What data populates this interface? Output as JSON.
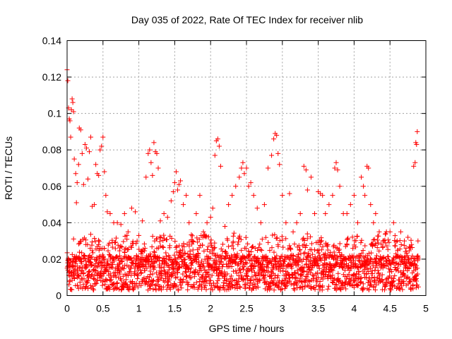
{
  "chart_data": {
    "type": "scatter",
    "title": "Day 035 of 2022, Rate Of TEC Index for receiver nlib",
    "xlabel": "GPS time / hours",
    "ylabel": "ROTI / TECUs",
    "xlim": [
      0,
      5
    ],
    "ylim": [
      0,
      0.14
    ],
    "xticks": [
      0,
      0.5,
      1,
      1.5,
      2,
      2.5,
      3,
      3.5,
      4,
      4.5,
      5
    ],
    "xtick_labels": [
      "0",
      "0.5",
      "1",
      "1.5",
      "2",
      "2.5",
      "3",
      "3.5",
      "4",
      "4.5",
      "5"
    ],
    "yticks": [
      0,
      0.02,
      0.04,
      0.06,
      0.08,
      0.1,
      0.12,
      0.14
    ],
    "ytick_labels": [
      "0",
      "0.02",
      "0.04",
      "0.06",
      "0.08",
      "0.1",
      "0.12",
      "0.14"
    ],
    "grid": true,
    "marker": "+",
    "color": "#ff0000",
    "series": [
      {
        "name": "ROTI",
        "points": [
          [
            0.0,
            0.124
          ],
          [
            0.01,
            0.118
          ],
          [
            0.02,
            0.103
          ],
          [
            0.03,
            0.097
          ],
          [
            0.04,
            0.096
          ],
          [
            0.05,
            0.087
          ],
          [
            0.06,
            0.102
          ],
          [
            0.07,
            0.108
          ],
          [
            0.08,
            0.106
          ],
          [
            0.09,
            0.101
          ],
          [
            0.1,
            0.075
          ],
          [
            0.12,
            0.067
          ],
          [
            0.13,
            0.051
          ],
          [
            0.14,
            0.062
          ],
          [
            0.16,
            0.072
          ],
          [
            0.17,
            0.092
          ],
          [
            0.19,
            0.091
          ],
          [
            0.21,
            0.078
          ],
          [
            0.23,
            0.061
          ],
          [
            0.25,
            0.083
          ],
          [
            0.27,
            0.081
          ],
          [
            0.29,
            0.064
          ],
          [
            0.31,
            0.079
          ],
          [
            0.33,
            0.087
          ],
          [
            0.35,
            0.049
          ],
          [
            0.38,
            0.05
          ],
          [
            0.4,
            0.072
          ],
          [
            0.42,
            0.067
          ],
          [
            0.44,
            0.066
          ],
          [
            0.46,
            0.08
          ],
          [
            0.48,
            0.082
          ],
          [
            0.5,
            0.087
          ],
          [
            0.52,
            0.068
          ],
          [
            0.54,
            0.055
          ],
          [
            0.56,
            0.046
          ],
          [
            0.6,
            0.045
          ],
          [
            0.65,
            0.04
          ],
          [
            0.7,
            0.04
          ],
          [
            0.75,
            0.039
          ],
          [
            0.8,
            0.045
          ],
          [
            0.85,
            0.035
          ],
          [
            0.9,
            0.048
          ],
          [
            0.95,
            0.046
          ],
          [
            1.0,
            0.033
          ],
          [
            1.05,
            0.041
          ],
          [
            1.1,
            0.065
          ],
          [
            1.13,
            0.078
          ],
          [
            1.15,
            0.08
          ],
          [
            1.17,
            0.073
          ],
          [
            1.19,
            0.066
          ],
          [
            1.21,
            0.084
          ],
          [
            1.23,
            0.079
          ],
          [
            1.25,
            0.078
          ],
          [
            1.27,
            0.07
          ],
          [
            1.3,
            0.041
          ],
          [
            1.35,
            0.045
          ],
          [
            1.4,
            0.043
          ],
          [
            1.45,
            0.052
          ],
          [
            1.48,
            0.057
          ],
          [
            1.5,
            0.062
          ],
          [
            1.52,
            0.068
          ],
          [
            1.54,
            0.058
          ],
          [
            1.56,
            0.061
          ],
          [
            1.58,
            0.063
          ],
          [
            1.62,
            0.05
          ],
          [
            1.66,
            0.055
          ],
          [
            1.7,
            0.04
          ],
          [
            1.75,
            0.03
          ],
          [
            1.8,
            0.045
          ],
          [
            1.85,
            0.055
          ],
          [
            1.9,
            0.035
          ],
          [
            1.95,
            0.04
          ],
          [
            2.0,
            0.043
          ],
          [
            2.03,
            0.048
          ],
          [
            2.06,
            0.077
          ],
          [
            2.08,
            0.085
          ],
          [
            2.1,
            0.086
          ],
          [
            2.12,
            0.082
          ],
          [
            2.14,
            0.071
          ],
          [
            2.2,
            0.038
          ],
          [
            2.25,
            0.05
          ],
          [
            2.3,
            0.055
          ],
          [
            2.35,
            0.06
          ],
          [
            2.4,
            0.065
          ],
          [
            2.43,
            0.07
          ],
          [
            2.45,
            0.073
          ],
          [
            2.47,
            0.067
          ],
          [
            2.5,
            0.07
          ],
          [
            2.53,
            0.06
          ],
          [
            2.56,
            0.062
          ],
          [
            2.6,
            0.055
          ],
          [
            2.65,
            0.048
          ],
          [
            2.7,
            0.04
          ],
          [
            2.75,
            0.05
          ],
          [
            2.8,
            0.07
          ],
          [
            2.85,
            0.077
          ],
          [
            2.88,
            0.086
          ],
          [
            2.9,
            0.089
          ],
          [
            2.92,
            0.088
          ],
          [
            2.94,
            0.078
          ],
          [
            2.96,
            0.072
          ],
          [
            3.0,
            0.055
          ],
          [
            3.05,
            0.04
          ],
          [
            3.1,
            0.056
          ],
          [
            3.15,
            0.035
          ],
          [
            3.2,
            0.04
          ],
          [
            3.25,
            0.045
          ],
          [
            3.3,
            0.071
          ],
          [
            3.33,
            0.069
          ],
          [
            3.35,
            0.058
          ],
          [
            3.4,
            0.065
          ],
          [
            3.45,
            0.045
          ],
          [
            3.5,
            0.057
          ],
          [
            3.53,
            0.056
          ],
          [
            3.56,
            0.055
          ],
          [
            3.6,
            0.045
          ],
          [
            3.65,
            0.05
          ],
          [
            3.7,
            0.055
          ],
          [
            3.73,
            0.07
          ],
          [
            3.75,
            0.073
          ],
          [
            3.77,
            0.069
          ],
          [
            3.8,
            0.06
          ],
          [
            3.85,
            0.045
          ],
          [
            3.9,
            0.045
          ],
          [
            3.95,
            0.05
          ],
          [
            4.0,
            0.055
          ],
          [
            4.05,
            0.04
          ],
          [
            4.1,
            0.065
          ],
          [
            4.13,
            0.06
          ],
          [
            4.15,
            0.055
          ],
          [
            4.18,
            0.071
          ],
          [
            4.2,
            0.07
          ],
          [
            4.23,
            0.05
          ],
          [
            4.27,
            0.04
          ],
          [
            4.3,
            0.045
          ],
          [
            4.35,
            0.035
          ],
          [
            4.4,
            0.03
          ],
          [
            4.45,
            0.035
          ],
          [
            4.5,
            0.035
          ],
          [
            4.55,
            0.04
          ],
          [
            4.6,
            0.03
          ],
          [
            4.65,
            0.035
          ],
          [
            4.7,
            0.03
          ],
          [
            4.75,
            0.032
          ],
          [
            4.8,
            0.028
          ],
          [
            4.83,
            0.071
          ],
          [
            4.85,
            0.073
          ],
          [
            4.86,
            0.084
          ],
          [
            4.87,
            0.083
          ],
          [
            4.88,
            0.09
          ],
          [
            4.89,
            0.03
          ]
        ]
      }
    ],
    "dense_band": {
      "description": "continuous dense cloud of points spanning the full time range",
      "x_range": [
        0,
        4.9
      ],
      "y_range": [
        0.003,
        0.035
      ],
      "typical_y": 0.013
    }
  }
}
